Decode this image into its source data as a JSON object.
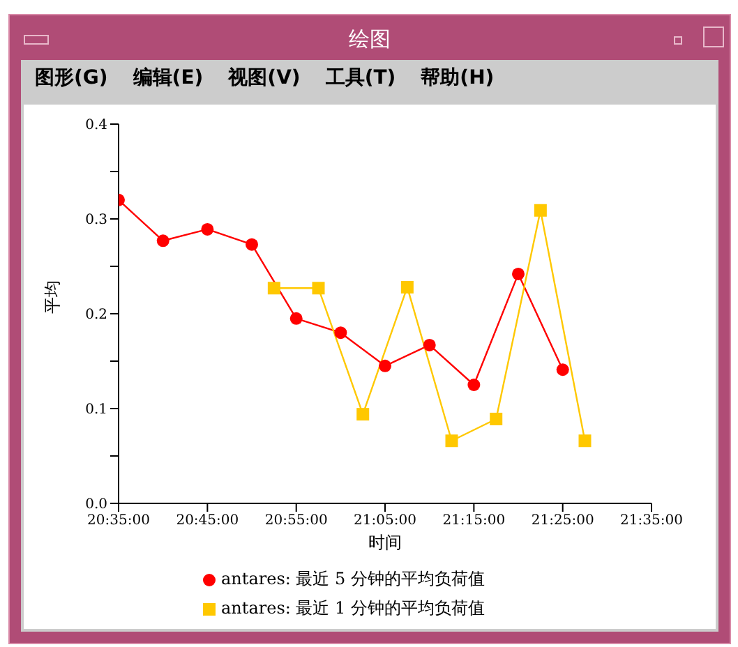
{
  "chart_data": {
    "type": "line",
    "title": "绘图",
    "annotations": [
      "图形(G)",
      "编辑(E)",
      "视图(V)",
      "工具(T)",
      "帮助(H)"
    ],
    "xlabel": "时间",
    "ylabel": "平均",
    "xlim": [
      20.5833,
      21.5833
    ],
    "xticks": [
      {
        "value": 20.5833,
        "label": "20:35:00"
      },
      {
        "value": 20.75,
        "label": "20:45:00"
      },
      {
        "value": 20.9167,
        "label": "20:55:00"
      },
      {
        "value": 21.0833,
        "label": "21:05:00"
      },
      {
        "value": 21.25,
        "label": "21:15:00"
      },
      {
        "value": 21.4167,
        "label": "21:25:00"
      },
      {
        "value": 21.5833,
        "label": "21:35:00"
      }
    ],
    "ylim": [
      0,
      0.4
    ],
    "yticks": [
      {
        "value": 0,
        "label": "0.0"
      },
      {
        "value": 0.05,
        "label": null
      },
      {
        "value": 0.1,
        "label": "0.1"
      },
      {
        "value": 0.15,
        "label": null
      },
      {
        "value": 0.2,
        "label": "0.2"
      },
      {
        "value": 0.25,
        "label": null
      },
      {
        "value": 0.3,
        "label": "0.3"
      },
      {
        "value": 0.35,
        "label": null
      },
      {
        "value": 0.4,
        "label": "0.4"
      }
    ],
    "grid": false,
    "legend": "bottom",
    "line_style": "solid",
    "series": [
      {
        "name": "antares: 最近 5 分钟的平均负荷值",
        "color": "#ff0000",
        "marker": "circle",
        "x": [
          20.5833,
          20.6667,
          20.75,
          20.8333,
          20.9167,
          21.0,
          21.0833,
          21.1667,
          21.25,
          21.3333,
          21.4167
        ],
        "values": [
          0.32,
          0.277,
          0.289,
          0.273,
          0.195,
          0.18,
          0.145,
          0.167,
          0.125,
          0.242,
          0.141
        ]
      },
      {
        "name": "antares: 最近 1 分钟的平均负荷值",
        "color": "#ffc800",
        "marker": "square",
        "x": [
          20.875,
          20.9583,
          21.0417,
          21.125,
          21.2083,
          21.2917,
          21.375,
          21.4583
        ],
        "values": [
          0.227,
          0.227,
          0.094,
          0.228,
          0.066,
          0.089,
          0.309,
          0.066
        ]
      }
    ]
  }
}
